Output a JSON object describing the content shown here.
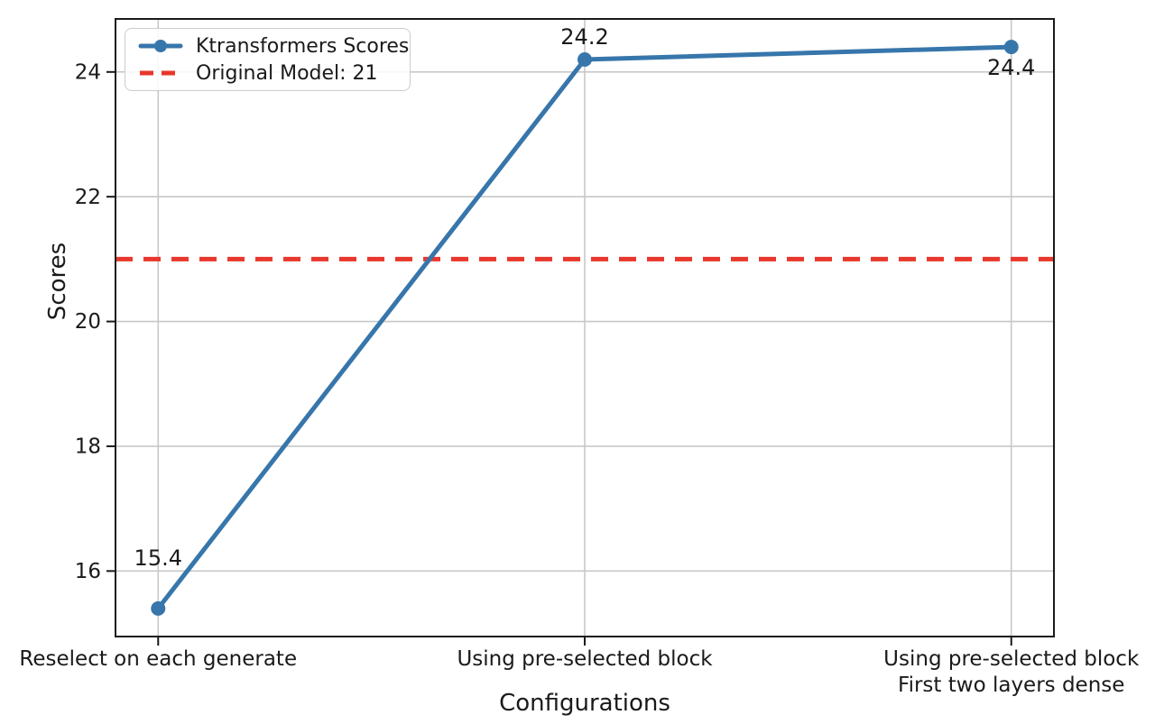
{
  "chart_data": {
    "type": "line",
    "xlabel": "Configurations",
    "ylabel": "Scores",
    "categories": [
      "Reselect on each generate",
      "Using pre-selected block",
      "Using pre-selected block\nFirst two layers dense"
    ],
    "series": [
      {
        "name": "Ktransformers Scores",
        "values": [
          15.4,
          24.2,
          24.4
        ],
        "color": "#3776ab",
        "marker": "circle"
      }
    ],
    "ref_line": {
      "label": "Original Model: 21",
      "value": 21,
      "color": "#e8372c",
      "style": "dashed"
    },
    "annotations": [
      {
        "text": "15.4",
        "x": 0,
        "y": 15.4,
        "dy": -48
      },
      {
        "text": "24.2",
        "x": 1,
        "y": 24.2,
        "dy": -17
      },
      {
        "text": "24.4",
        "x": 2,
        "y": 24.4,
        "dy": 31
      }
    ],
    "yticks": [
      16,
      18,
      20,
      22,
      24
    ],
    "ylim": [
      14.95,
      24.85
    ],
    "xlim": [
      -0.1,
      2.1
    ],
    "grid": true,
    "legend_position": "upper-left",
    "colors": {
      "grid": "#c8c8c8",
      "spine": "#1a1a1a",
      "text": "#1a1a1a"
    }
  }
}
